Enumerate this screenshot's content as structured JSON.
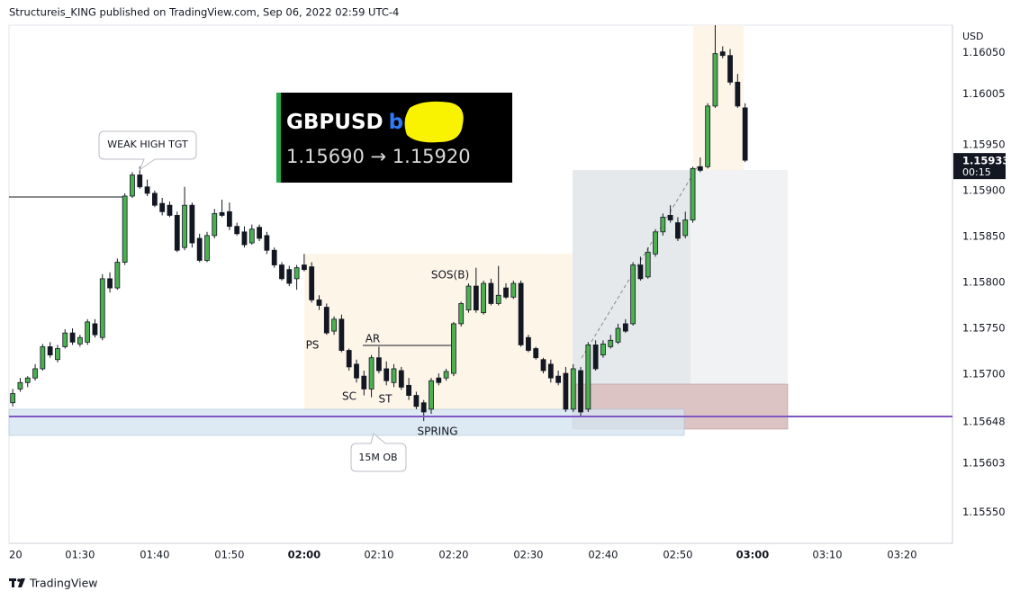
{
  "header": {
    "title": "Structureis_KING published on TradingView.com, Sep 06, 2022 02:59 UTC-4"
  },
  "chart_data": {
    "type": "candlestick",
    "currency": "USD",
    "up_color": "#4caf50",
    "down_color": "#131722",
    "wick_color": "#131722",
    "grid": false,
    "last_price": 1.15933,
    "countdown": "00:15",
    "ylim": [
      1.15516,
      1.1608
    ],
    "yticks": [
      {
        "value": 1.1605,
        "label": "1.16050"
      },
      1.16005,
      {
        "value": 1.1595,
        "label": "1.15950"
      },
      {
        "value": 1.159,
        "label": "1.15900"
      },
      {
        "value": 1.1585,
        "label": "1.15850"
      },
      {
        "value": 1.158,
        "label": "1.15800"
      },
      {
        "value": 1.1575,
        "label": "1.15750"
      },
      {
        "value": 1.157,
        "label": "1.15700"
      },
      1.15648,
      1.15603,
      {
        "value": 1.1555,
        "label": "1.15550"
      }
    ],
    "xlim": [
      "01:20:30",
      "03:26:45"
    ],
    "xticks": [
      {
        "value": "01:20",
        "label": "20"
      },
      "01:30",
      "01:40",
      "01:50",
      "02:00",
      "02:10",
      "02:20",
      "02:30",
      "02:40",
      "02:50",
      "03:00",
      "03:10",
      "03:20"
    ],
    "x": [
      "01:21",
      "01:22",
      "01:23",
      "01:24",
      "01:25",
      "01:26",
      "01:27",
      "01:28",
      "01:29",
      "01:30",
      "01:31",
      "01:32",
      "01:33",
      "01:34",
      "01:35",
      "01:36",
      "01:37",
      "01:38",
      "01:39",
      "01:40",
      "01:41",
      "01:42",
      "01:43",
      "01:44",
      "01:45",
      "01:46",
      "01:47",
      "01:48",
      "01:49",
      "01:50",
      "01:51",
      "01:52",
      "01:53",
      "01:54",
      "01:55",
      "01:56",
      "01:57",
      "01:58",
      "01:59",
      "02:00",
      "02:01",
      "02:02",
      "02:03",
      "02:04",
      "02:05",
      "02:06",
      "02:07",
      "02:08",
      "02:09",
      "02:10",
      "02:11",
      "02:12",
      "02:13",
      "02:14",
      "02:15",
      "02:16",
      "02:17",
      "02:18",
      "02:19",
      "02:20",
      "02:21",
      "02:22",
      "02:23",
      "02:24",
      "02:25",
      "02:26",
      "02:27",
      "02:28",
      "02:29",
      "02:30",
      "02:31",
      "02:32",
      "02:33",
      "02:34",
      "02:35",
      "02:36",
      "02:37",
      "02:38",
      "02:39",
      "02:40",
      "02:41",
      "02:42",
      "02:43",
      "02:44",
      "02:45",
      "02:46",
      "02:47",
      "02:48",
      "02:49",
      "02:50",
      "02:51",
      "02:52",
      "02:53",
      "02:54",
      "02:55",
      "02:56",
      "02:57",
      "02:58",
      "02:59"
    ],
    "open": [
      1.15669,
      1.15684,
      1.15691,
      1.15696,
      1.15706,
      1.1573,
      1.15716,
      1.1573,
      1.15745,
      1.15733,
      1.15735,
      1.15755,
      1.1574,
      1.15804,
      1.15794,
      1.15822,
      1.15894,
      1.15917,
      1.15904,
      1.15897,
      1.15886,
      1.15884,
      1.15873,
      1.15838,
      1.15884,
      1.15848,
      1.15824,
      1.15851,
      1.15876,
      1.15877,
      1.15861,
      1.15855,
      1.15843,
      1.1586,
      1.15851,
      1.15835,
      1.15819,
      1.15814,
      1.15804,
      1.15819,
      1.15817,
      1.15781,
      1.15773,
      1.15747,
      1.1576,
      1.15726,
      1.15711,
      1.15698,
      1.15684,
      1.15718,
      1.15706,
      1.15691,
      1.15704,
      1.15688,
      1.15677,
      1.15669,
      1.15662,
      1.15696,
      1.15696,
      1.15701,
      1.15755,
      1.1577,
      1.15796,
      1.15767,
      1.15799,
      1.15777,
      1.15794,
      1.15784,
      1.15799,
      1.1574,
      1.15728,
      1.15716,
      1.15711,
      1.15698,
      1.15701,
      1.15662,
      1.15704,
      1.15662,
      1.15732,
      1.15721,
      1.1573,
      1.15735,
      1.15755,
      1.15755,
      1.15819,
      1.15806,
      1.15831,
      1.15855,
      1.15873,
      1.15865,
      1.15851,
      1.15868,
      1.15926,
      1.15926,
      1.15992,
      1.16051,
      1.16047,
      1.16018,
      1.1599
    ],
    "high": [
      1.15684,
      1.15696,
      1.15698,
      1.15711,
      1.15733,
      1.15735,
      1.15732,
      1.15749,
      1.1575,
      1.15743,
      1.1576,
      1.1576,
      1.15809,
      1.15811,
      1.15826,
      1.15897,
      1.1592,
      1.15926,
      1.15912,
      1.159,
      1.15892,
      1.15888,
      1.15877,
      1.15904,
      1.15887,
      1.15853,
      1.15855,
      1.1588,
      1.1589,
      1.15887,
      1.15865,
      1.15861,
      1.15863,
      1.15863,
      1.15855,
      1.15838,
      1.15822,
      1.15818,
      1.15819,
      1.15831,
      1.15822,
      1.15786,
      1.15777,
      1.15763,
      1.15765,
      1.15728,
      1.15716,
      1.15704,
      1.15721,
      1.1573,
      1.15714,
      1.15711,
      1.15708,
      1.15696,
      1.15681,
      1.15672,
      1.15696,
      1.15701,
      1.15706,
      1.15757,
      1.15779,
      1.15799,
      1.15816,
      1.15802,
      1.15804,
      1.15818,
      1.15799,
      1.15802,
      1.15802,
      1.15743,
      1.1573,
      1.15718,
      1.15716,
      1.15704,
      1.15708,
      1.15711,
      1.15708,
      1.15735,
      1.15737,
      1.15737,
      1.15743,
      1.15755,
      1.1576,
      1.15822,
      1.15828,
      1.15838,
      1.15858,
      1.15875,
      1.15884,
      1.15871,
      1.15877,
      1.15926,
      1.15936,
      1.15995,
      1.1608,
      1.16057,
      1.16054,
      1.16027,
      1.15995
    ],
    "low": [
      1.15665,
      1.15681,
      1.15686,
      1.15693,
      1.15704,
      1.15718,
      1.15713,
      1.15728,
      1.15732,
      1.1573,
      1.15732,
      1.1574,
      1.15737,
      1.15789,
      1.15792,
      1.15819,
      1.15892,
      1.15902,
      1.15894,
      1.15882,
      1.15873,
      1.15871,
      1.15833,
      1.15835,
      1.15838,
      1.15822,
      1.15822,
      1.15848,
      1.15871,
      1.15857,
      1.15851,
      1.15838,
      1.15841,
      1.15845,
      1.15831,
      1.15816,
      1.15802,
      1.15796,
      1.15792,
      1.15812,
      1.15778,
      1.1577,
      1.15743,
      1.15743,
      1.15724,
      1.15704,
      1.15691,
      1.15677,
      1.15675,
      1.15701,
      1.15688,
      1.15686,
      1.15683,
      1.15672,
      1.15662,
      1.15649,
      1.15657,
      1.15688,
      1.15693,
      1.15698,
      1.15752,
      1.15767,
      1.15767,
      1.15765,
      1.15775,
      1.15775,
      1.15782,
      1.15782,
      1.1573,
      1.15724,
      1.15716,
      1.15701,
      1.15691,
      1.15688,
      1.15659,
      1.15659,
      1.15655,
      1.15659,
      1.15704,
      1.15718,
      1.15728,
      1.15733,
      1.15745,
      1.15753,
      1.15802,
      1.15804,
      1.15828,
      1.15851,
      1.15865,
      1.15845,
      1.15848,
      1.15865,
      1.1592,
      1.15924,
      1.1599,
      1.16044,
      1.16015,
      1.1599,
      1.15931
    ],
    "close": [
      1.15679,
      1.15691,
      1.15696,
      1.15706,
      1.1573,
      1.15721,
      1.15728,
      1.15745,
      1.15735,
      1.1574,
      1.15757,
      1.15743,
      1.15804,
      1.15794,
      1.15822,
      1.15894,
      1.15917,
      1.15904,
      1.15897,
      1.15884,
      1.15877,
      1.15873,
      1.15835,
      1.15884,
      1.15843,
      1.15824,
      1.15851,
      1.15875,
      1.15873,
      1.15861,
      1.15853,
      1.15841,
      1.15858,
      1.15848,
      1.15835,
      1.15819,
      1.15804,
      1.15799,
      1.15816,
      1.15814,
      1.15781,
      1.15775,
      1.15745,
      1.1576,
      1.15726,
      1.15708,
      1.15696,
      1.15684,
      1.15718,
      1.15704,
      1.15693,
      1.15706,
      1.15686,
      1.15677,
      1.15665,
      1.15659,
      1.15693,
      1.15691,
      1.15703,
      1.15755,
      1.15777,
      1.15796,
      1.1577,
      1.15799,
      1.15777,
      1.15786,
      1.15784,
      1.15799,
      1.15732,
      1.15726,
      1.15718,
      1.15704,
      1.15696,
      1.15691,
      1.15662,
      1.15706,
      1.15659,
      1.15732,
      1.15706,
      1.15733,
      1.15737,
      1.1575,
      1.15747,
      1.15819,
      1.15804,
      1.15833,
      1.15855,
      1.15871,
      1.15868,
      1.15848,
      1.15868,
      1.15924,
      1.15922,
      1.15992,
      1.16049,
      1.16047,
      1.16018,
      1.15992,
      1.15933
    ],
    "annotations": [
      "WEAK HIGH TGT",
      "PS",
      "AR",
      "SC",
      "ST",
      "SPRING",
      "SOS(B)",
      "15M OB"
    ]
  },
  "overlay": {
    "symbol": "GBPUSD",
    "side": "buy",
    "prices": "1.15690 → 1.15920"
  },
  "footer": {
    "brand": "TradingView"
  }
}
